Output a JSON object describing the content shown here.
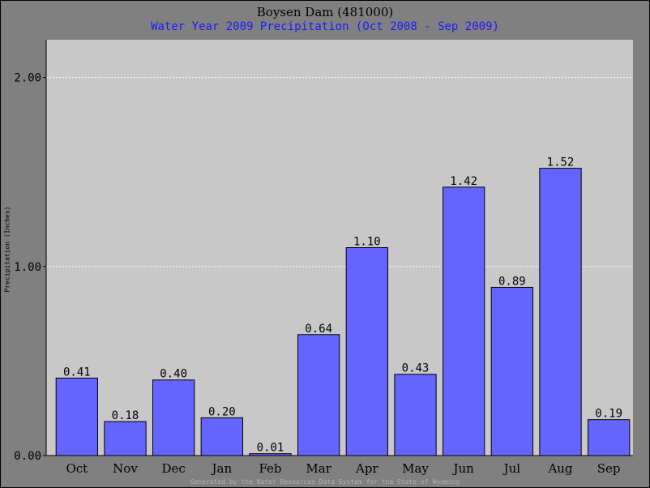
{
  "chart_data": {
    "type": "bar",
    "title": "Boysen Dam (481000)",
    "subtitle": "Water Year 2009 Precipitation (Oct 2008 - Sep 2009)",
    "ylabel": "Precipitation (Inches)",
    "xlabel": "",
    "categories": [
      "Oct",
      "Nov",
      "Dec",
      "Jan",
      "Feb",
      "Mar",
      "Apr",
      "May",
      "Jun",
      "Jul",
      "Aug",
      "Sep"
    ],
    "values": [
      0.41,
      0.18,
      0.4,
      0.2,
      0.01,
      0.64,
      1.1,
      0.43,
      1.42,
      0.89,
      1.52,
      0.19
    ],
    "value_labels": [
      "0.41",
      "0.18",
      "0.40",
      "0.20",
      "0.01",
      "0.64",
      "1.10",
      "0.43",
      "1.42",
      "0.89",
      "1.52",
      "0.19"
    ],
    "ylim": [
      0,
      2.2
    ],
    "yticks": [
      0,
      1,
      2
    ],
    "ytick_labels": [
      "0.00",
      "1.00",
      "2.00"
    ],
    "grid": true,
    "legend": "none"
  },
  "footer": "Generated by the Water Resources Data System for the State of Wyoming",
  "colors": {
    "bar": "#6464ff",
    "plot_background": "#c8c8c8",
    "page_background": "#808080",
    "subtitle": "#1a1aff",
    "gridline": "#ffffff"
  }
}
